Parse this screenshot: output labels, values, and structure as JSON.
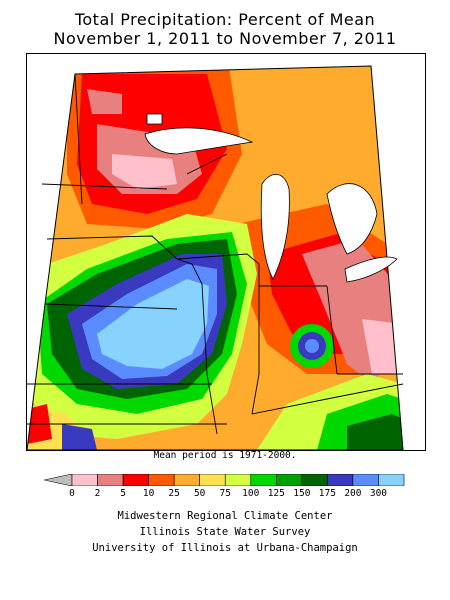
{
  "title": {
    "line1": "Total Precipitation: Percent of Mean",
    "line2": "November 1, 2011 to November 7, 2011"
  },
  "note": "Mean period is 1971-2000.",
  "legend": {
    "ticks": [
      "0",
      "2",
      "5",
      "10",
      "25",
      "50",
      "75",
      "100",
      "125",
      "150",
      "175",
      "200",
      "300"
    ],
    "colors": [
      "#ffc0cb",
      "#e88080",
      "#ff0000",
      "#ff5a00",
      "#ffab2e",
      "#ffe050",
      "#d2ff40",
      "#00d800",
      "#00a000",
      "#006400",
      "#3a3ac0",
      "#5a8cff",
      "#88d2ff"
    ],
    "under_color": "#bdbdbd"
  },
  "credits": [
    "Midwestern Regional Climate Center",
    "Illinois State Water Survey",
    "University of Illinois at Urbana-Champaign"
  ]
}
